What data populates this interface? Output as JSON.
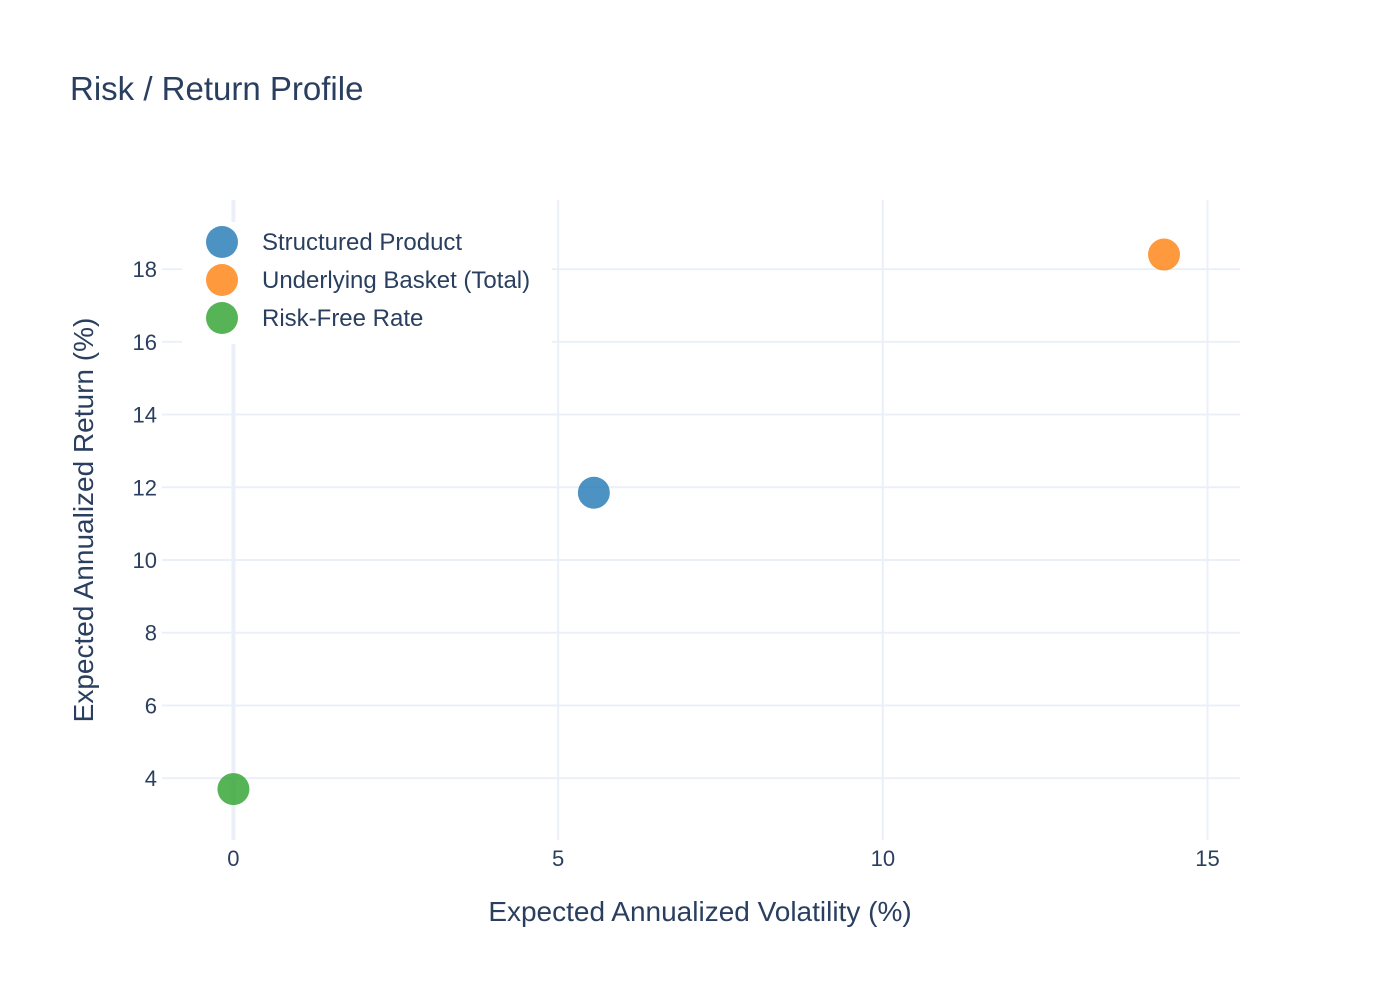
{
  "chart_data": {
    "type": "scatter",
    "title": "Risk / Return Profile",
    "xlabel": "Expected Annualized Volatility (%)",
    "ylabel": "Expected Annualized Return (%)",
    "xlim": [
      -1.1,
      15.5
    ],
    "ylim": [
      2.3,
      19.9
    ],
    "x_ticks": [
      0,
      5,
      10,
      15
    ],
    "y_ticks": [
      4,
      6,
      8,
      10,
      12,
      14,
      16,
      18
    ],
    "grid": true,
    "legend_position": "top-left",
    "series": [
      {
        "name": "Structured Product",
        "color": "#1f77b4",
        "x": [
          5.55
        ],
        "y": [
          11.85
        ]
      },
      {
        "name": "Underlying Basket (Total)",
        "color": "#ff7f0e",
        "x": [
          14.33
        ],
        "y": [
          18.4
        ]
      },
      {
        "name": "Risk-Free Rate",
        "color": "#2ca02c",
        "x": [
          0.0
        ],
        "y": [
          3.7
        ]
      }
    ]
  }
}
